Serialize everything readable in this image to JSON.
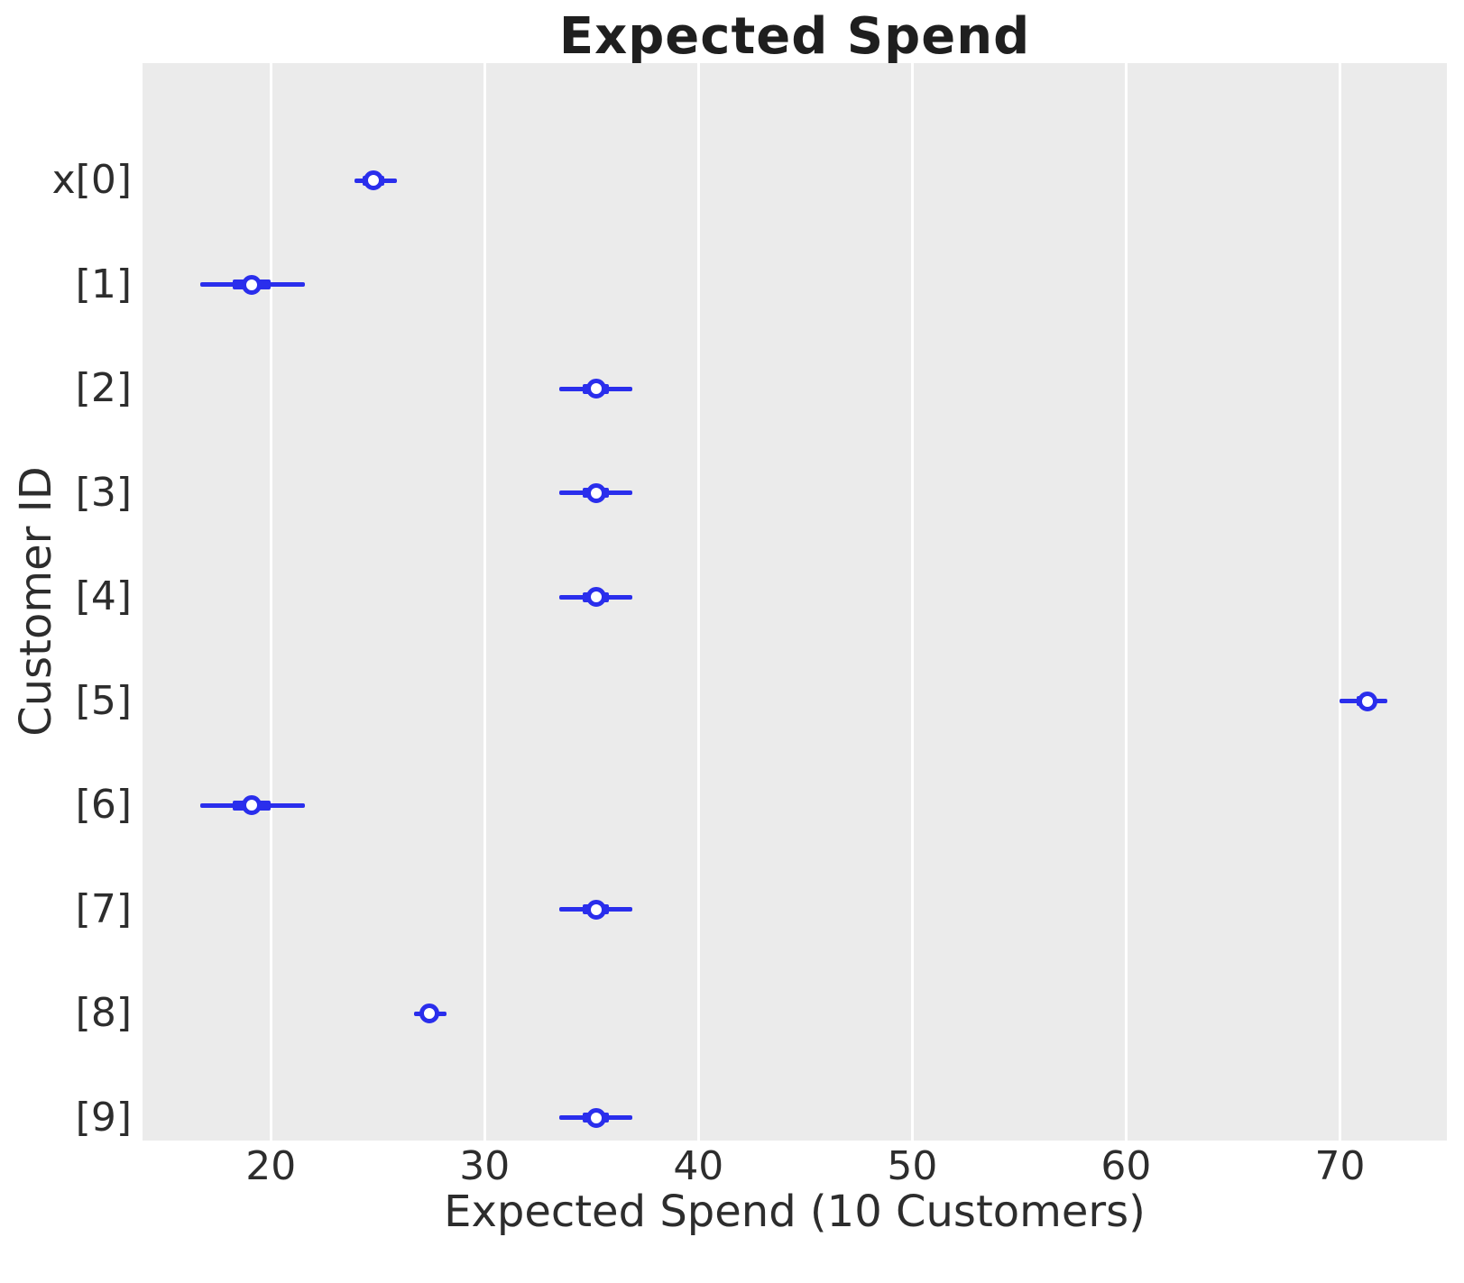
{
  "chart_data": {
    "type": "forest",
    "description": "Forest plot of posterior expected spend per customer; open circle = point estimate, thick bar = interquartile range, thin line = credible interval",
    "title": "Expected Spend",
    "xlabel": "Expected Spend (10 Customers)",
    "ylabel": "Customer ID",
    "xlim": [
      14,
      75
    ],
    "x_ticks": [
      20,
      30,
      40,
      50,
      60,
      70
    ],
    "grid": "vertical white gridlines on light gray panel",
    "legend": "none",
    "rows": [
      {
        "label": "x[0]",
        "median": 24.8,
        "hdi_low": 23.9,
        "hdi_high": 25.9,
        "iqr_low": 24.3,
        "iqr_high": 25.3
      },
      {
        "label": "[1]",
        "median": 19.1,
        "hdi_low": 16.7,
        "hdi_high": 21.6,
        "iqr_low": 18.2,
        "iqr_high": 20.0
      },
      {
        "label": "[2]",
        "median": 35.2,
        "hdi_low": 33.5,
        "hdi_high": 36.9,
        "iqr_low": 34.6,
        "iqr_high": 35.8
      },
      {
        "label": "[3]",
        "median": 35.2,
        "hdi_low": 33.5,
        "hdi_high": 36.9,
        "iqr_low": 34.6,
        "iqr_high": 35.8
      },
      {
        "label": "[4]",
        "median": 35.2,
        "hdi_low": 33.5,
        "hdi_high": 36.9,
        "iqr_low": 34.6,
        "iqr_high": 35.8
      },
      {
        "label": "[5]",
        "median": 71.3,
        "hdi_low": 70.0,
        "hdi_high": 72.2,
        "iqr_low": 70.8,
        "iqr_high": 71.6
      },
      {
        "label": "[6]",
        "median": 19.1,
        "hdi_low": 16.7,
        "hdi_high": 21.6,
        "iqr_low": 18.2,
        "iqr_high": 20.0
      },
      {
        "label": "[7]",
        "median": 35.2,
        "hdi_low": 33.5,
        "hdi_high": 36.9,
        "iqr_low": 34.6,
        "iqr_high": 35.8
      },
      {
        "label": "[8]",
        "median": 27.4,
        "hdi_low": 26.7,
        "hdi_high": 28.2,
        "iqr_low": 27.1,
        "iqr_high": 27.7
      },
      {
        "label": "[9]",
        "median": 35.2,
        "hdi_low": 33.5,
        "hdi_high": 36.9,
        "iqr_low": 34.6,
        "iqr_high": 35.8
      }
    ],
    "colors": {
      "interval": "#2a2eec",
      "marker_fill": "#ffffff",
      "panel_bg": "#ebebeb",
      "gridline": "#ffffff",
      "text": "#262626"
    }
  }
}
